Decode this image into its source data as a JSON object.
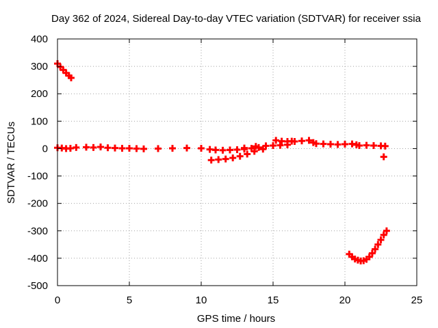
{
  "chart_data": {
    "type": "scatter",
    "title": "Day 362 of 2024, Sidereal Day-to-day VTEC variation (SDTVAR) for receiver ssia",
    "xlabel": "GPS time / hours",
    "ylabel": "SDTVAR / TECUs",
    "xlim": [
      0,
      25
    ],
    "ylim": [
      -500,
      400
    ],
    "xticks": [
      0,
      5,
      10,
      15,
      20,
      25
    ],
    "yticks": [
      -500,
      -400,
      -300,
      -200,
      -100,
      0,
      100,
      200,
      300,
      400
    ],
    "grid": true,
    "legend": "none",
    "colors": {
      "series": "#ff0000",
      "grid": "#a0a0a0",
      "frame": "#000000"
    },
    "series": [
      {
        "name": "SDTVAR",
        "points": [
          [
            0.0,
            310
          ],
          [
            0.2,
            298
          ],
          [
            0.4,
            287
          ],
          [
            0.6,
            276
          ],
          [
            0.8,
            266
          ],
          [
            0.95,
            258
          ],
          [
            0.0,
            3
          ],
          [
            0.3,
            2
          ],
          [
            0.6,
            0
          ],
          [
            0.9,
            1
          ],
          [
            1.3,
            4
          ],
          [
            2.0,
            5
          ],
          [
            2.5,
            4
          ],
          [
            3.0,
            6
          ],
          [
            3.5,
            3
          ],
          [
            4.0,
            2
          ],
          [
            4.5,
            1
          ],
          [
            5.0,
            1
          ],
          [
            5.5,
            0
          ],
          [
            6.0,
            -1
          ],
          [
            7.0,
            0
          ],
          [
            8.0,
            1
          ],
          [
            9.0,
            2
          ],
          [
            10.0,
            1
          ],
          [
            10.6,
            -3
          ],
          [
            11.0,
            -5
          ],
          [
            11.5,
            -6
          ],
          [
            12.0,
            -5
          ],
          [
            12.5,
            -4
          ],
          [
            13.0,
            -2
          ],
          [
            13.5,
            1
          ],
          [
            14.0,
            4
          ],
          [
            10.7,
            -42
          ],
          [
            11.2,
            -40
          ],
          [
            11.7,
            -38
          ],
          [
            12.2,
            -34
          ],
          [
            12.7,
            -28
          ],
          [
            13.2,
            -20
          ],
          [
            13.7,
            -10
          ],
          [
            14.3,
            -2
          ],
          [
            13.0,
            2
          ],
          [
            13.8,
            8
          ],
          [
            14.5,
            10
          ],
          [
            15.0,
            11
          ],
          [
            15.5,
            12
          ],
          [
            16.0,
            14
          ],
          [
            15.2,
            30
          ],
          [
            15.6,
            27
          ],
          [
            16.0,
            26
          ],
          [
            16.3,
            27
          ],
          [
            16.5,
            26
          ],
          [
            17.0,
            28
          ],
          [
            17.5,
            30
          ],
          [
            17.8,
            22
          ],
          [
            18.0,
            18
          ],
          [
            18.5,
            17
          ],
          [
            19.0,
            16
          ],
          [
            19.5,
            15
          ],
          [
            20.0,
            16
          ],
          [
            20.5,
            17
          ],
          [
            20.8,
            14
          ],
          [
            21.0,
            11
          ],
          [
            21.5,
            12
          ],
          [
            22.0,
            11
          ],
          [
            22.5,
            10
          ],
          [
            22.8,
            9
          ],
          [
            22.7,
            -30
          ],
          [
            20.3,
            -385
          ],
          [
            20.5,
            -395
          ],
          [
            20.7,
            -403
          ],
          [
            20.9,
            -407
          ],
          [
            21.1,
            -410
          ],
          [
            21.3,
            -409
          ],
          [
            21.5,
            -404
          ],
          [
            21.7,
            -395
          ],
          [
            21.9,
            -382
          ],
          [
            22.1,
            -367
          ],
          [
            22.3,
            -350
          ],
          [
            22.5,
            -333
          ],
          [
            22.7,
            -315
          ],
          [
            22.9,
            -300
          ]
        ]
      }
    ]
  }
}
